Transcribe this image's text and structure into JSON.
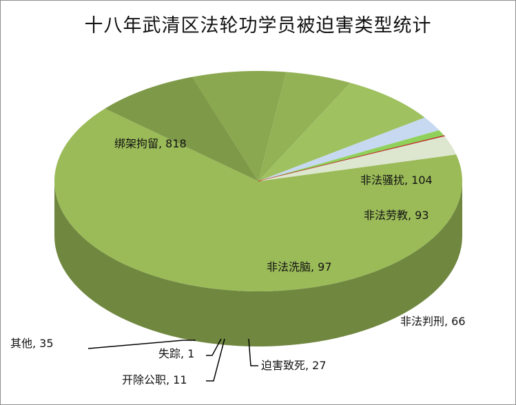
{
  "chart_data": {
    "type": "pie",
    "style": "3d",
    "title": "十八年武清区法轮功学员被迫害类型统计",
    "legend": "none",
    "slices": [
      {
        "category": "绑架拘留",
        "value": 818,
        "label": "绑架拘留, 818",
        "color": "#9bbb59"
      },
      {
        "category": "非法骚扰",
        "value": 104,
        "label": "非法骚扰, 104",
        "color": "#7e9a48"
      },
      {
        "category": "非法劳教",
        "value": 93,
        "label": "非法劳教, 93",
        "color": "#8aa84f"
      },
      {
        "category": "非法判刑",
        "value": 66,
        "label": "非法判刑, 66",
        "color": "#93b256"
      },
      {
        "category": "非法洗脑",
        "value": 97,
        "label": "非法洗脑, 97",
        "color": "#9fc160"
      },
      {
        "category": "迫害致死",
        "value": 27,
        "label": "迫害致死, 27",
        "color": "#c6d9f0"
      },
      {
        "category": "开除公职",
        "value": 11,
        "label": "开除公职, 11",
        "color": "#8fd15a"
      },
      {
        "category": "失踪",
        "value": 1,
        "label": "失踪, 1",
        "color": "#c0282a"
      },
      {
        "category": "其他",
        "value": 35,
        "label": "其他, 35",
        "color": "#dde7cf"
      }
    ]
  }
}
